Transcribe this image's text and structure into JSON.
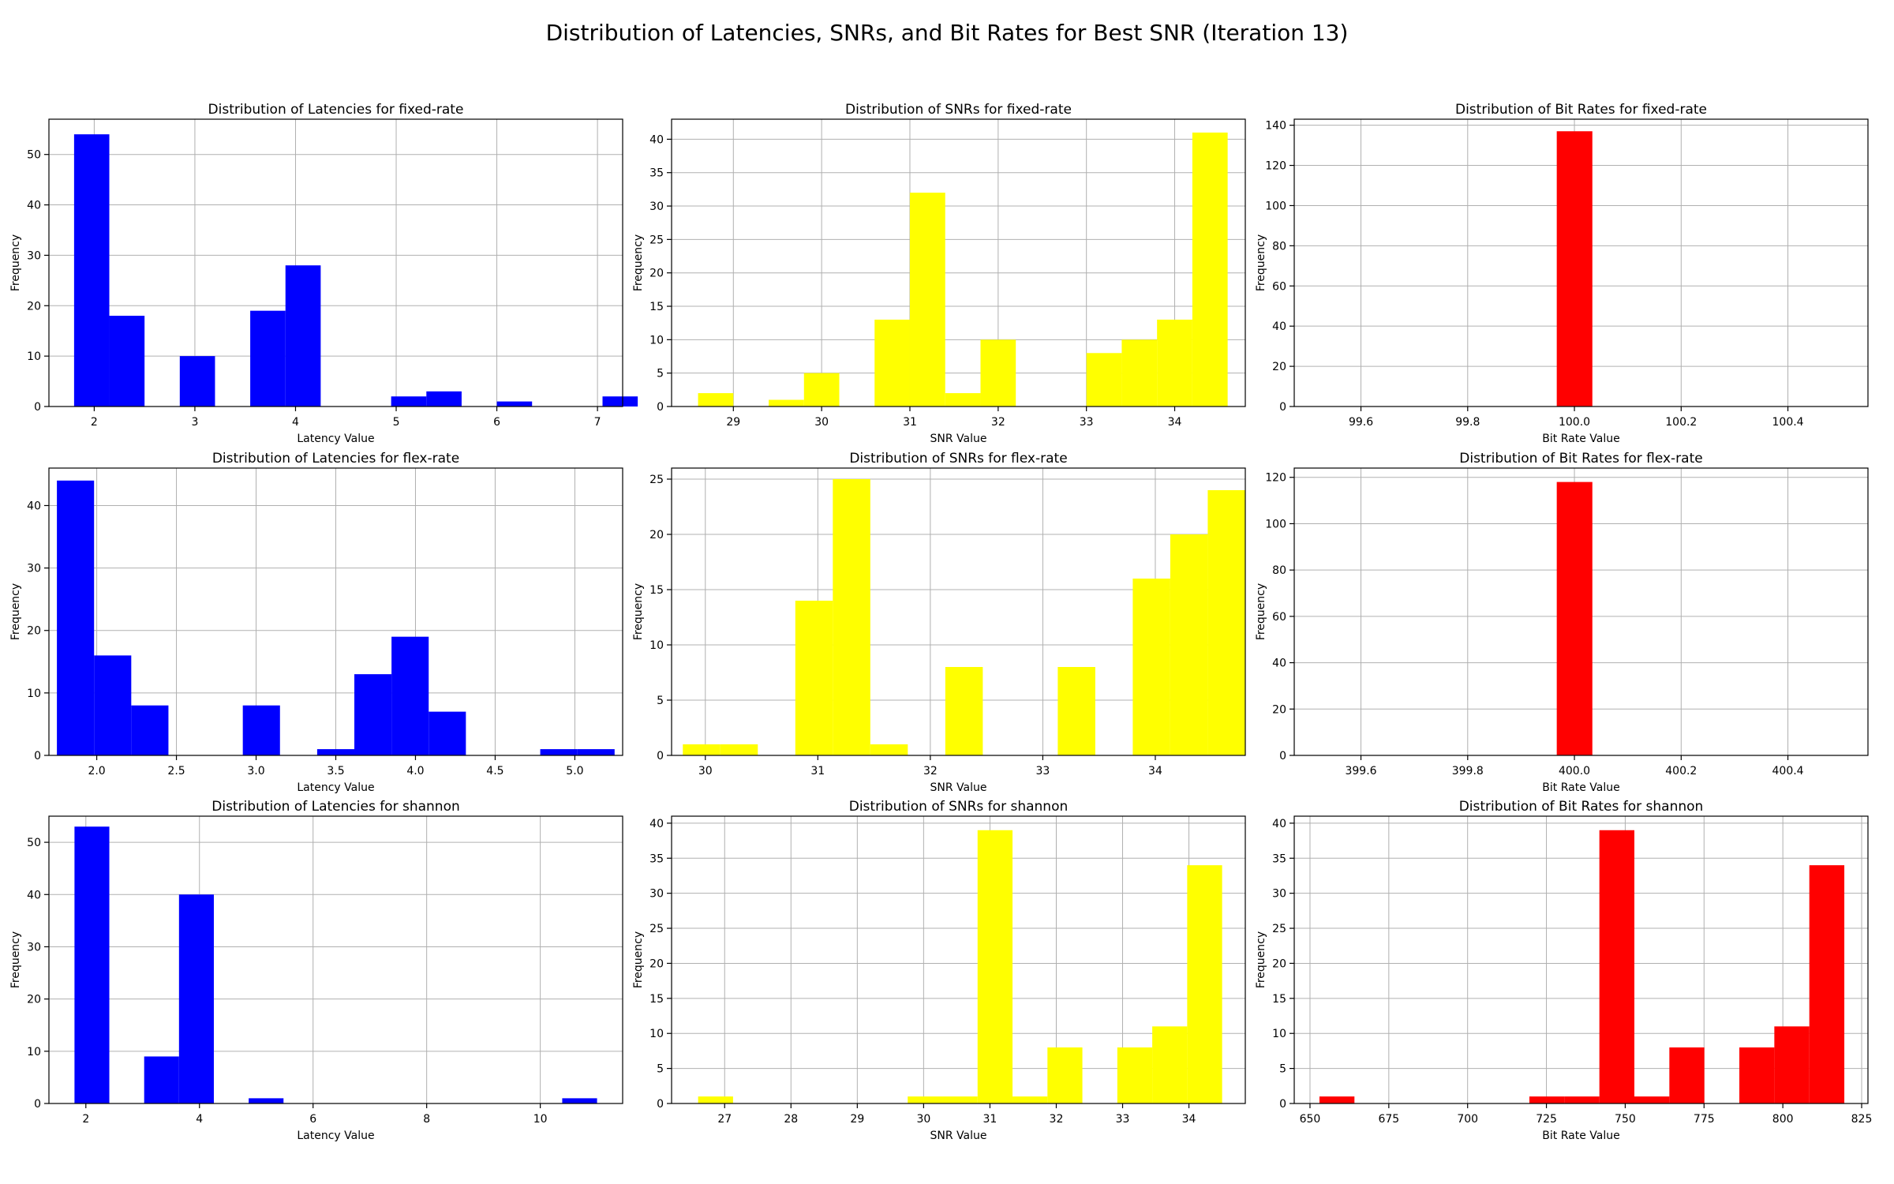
{
  "figure_title": "Distribution of Latencies, SNRs, and Bit Rates for Best SNR (Iteration 13)",
  "chart_data": [
    {
      "type": "bar",
      "title": "Distribution of Latencies for fixed-rate",
      "xlabel": "Latency Value",
      "ylabel": "Frequency",
      "color": "#0000ff",
      "xlim": [
        1.55,
        7.25
      ],
      "ylim": [
        0,
        57
      ],
      "xticks": [
        2,
        3,
        4,
        5,
        6,
        7
      ],
      "xtick_labels": [
        "2",
        "3",
        "4",
        "5",
        "6",
        "7"
      ],
      "yticks": [
        0,
        10,
        20,
        30,
        40,
        50
      ],
      "ytick_labels": [
        "0",
        "10",
        "20",
        "30",
        "40",
        "50"
      ],
      "bin_start": 1.8,
      "bin_width": 0.35,
      "values": [
        54,
        18,
        0,
        10,
        0,
        19,
        28,
        0,
        0,
        2,
        3,
        0,
        1,
        0,
        0,
        2
      ]
    },
    {
      "type": "bar",
      "title": "Distribution of SNRs for fixed-rate",
      "xlabel": "SNR Value",
      "ylabel": "Frequency",
      "color": "#ffff00",
      "xlim": [
        28.3,
        34.8
      ],
      "ylim": [
        0,
        43
      ],
      "xticks": [
        29,
        30,
        31,
        32,
        33,
        34
      ],
      "xtick_labels": [
        "29",
        "30",
        "31",
        "32",
        "33",
        "34"
      ],
      "yticks": [
        0,
        5,
        10,
        15,
        20,
        25,
        30,
        35,
        40
      ],
      "ytick_labels": [
        "0",
        "5",
        "10",
        "15",
        "20",
        "25",
        "30",
        "35",
        "40"
      ],
      "bin_start": 28.6,
      "bin_width": 0.4,
      "values": [
        2,
        0,
        1,
        5,
        0,
        13,
        32,
        2,
        10,
        0,
        0,
        8,
        10,
        13,
        41
      ]
    },
    {
      "type": "bar",
      "title": "Distribution of Bit Rates for fixed-rate",
      "xlabel": "Bit Rate Value",
      "ylabel": "Frequency",
      "color": "#ff0000",
      "xlim": [
        99.475,
        100.55
      ],
      "ylim": [
        0,
        143
      ],
      "xticks": [
        99.6,
        99.8,
        100.0,
        100.2,
        100.4
      ],
      "xtick_labels": [
        "99.6",
        "99.8",
        "100.0",
        "100.2",
        "100.4"
      ],
      "yticks": [
        0,
        20,
        40,
        60,
        80,
        100,
        120,
        140
      ],
      "ytick_labels": [
        "0",
        "20",
        "40",
        "60",
        "80",
        "100",
        "120",
        "140"
      ],
      "bin_start": 99.5,
      "bin_width": 0.0667,
      "values": [
        0,
        0,
        0,
        0,
        0,
        0,
        0,
        137,
        0,
        0,
        0,
        0,
        0,
        0,
        0
      ]
    },
    {
      "type": "bar",
      "title": "Distribution of Latencies for flex-rate",
      "xlabel": "Latency Value",
      "ylabel": "Frequency",
      "color": "#0000ff",
      "xlim": [
        1.7,
        5.3
      ],
      "ylim": [
        0,
        46
      ],
      "xticks": [
        2.0,
        2.5,
        3.0,
        3.5,
        4.0,
        4.5,
        5.0
      ],
      "xtick_labels": [
        "2.0",
        "2.5",
        "3.0",
        "3.5",
        "4.0",
        "4.5",
        "5.0"
      ],
      "yticks": [
        0,
        10,
        20,
        30,
        40
      ],
      "ytick_labels": [
        "0",
        "10",
        "20",
        "30",
        "40"
      ],
      "bin_start": 1.75,
      "bin_width": 0.2333,
      "values": [
        44,
        16,
        8,
        0,
        0,
        8,
        0,
        1,
        13,
        19,
        7,
        0,
        0,
        1,
        1
      ]
    },
    {
      "type": "bar",
      "title": "Distribution of SNRs for flex-rate",
      "xlabel": "SNR Value",
      "ylabel": "Frequency",
      "color": "#ffff00",
      "xlim": [
        29.7,
        34.8
      ],
      "ylim": [
        0,
        26
      ],
      "xticks": [
        30,
        31,
        32,
        33,
        34
      ],
      "xtick_labels": [
        "30",
        "31",
        "32",
        "33",
        "34"
      ],
      "yticks": [
        0,
        5,
        10,
        15,
        20,
        25
      ],
      "ytick_labels": [
        "0",
        "5",
        "10",
        "15",
        "20",
        "25"
      ],
      "bin_start": 29.8,
      "bin_width": 0.3333,
      "values": [
        1,
        1,
        0,
        14,
        25,
        1,
        0,
        8,
        0,
        0,
        8,
        0,
        16,
        20,
        24
      ]
    },
    {
      "type": "bar",
      "title": "Distribution of Bit Rates for flex-rate",
      "xlabel": "Bit Rate Value",
      "ylabel": "Frequency",
      "color": "#ff0000",
      "xlim": [
        399.475,
        400.55
      ],
      "ylim": [
        0,
        124
      ],
      "xticks": [
        399.6,
        399.8,
        400.0,
        400.2,
        400.4
      ],
      "xtick_labels": [
        "399.6",
        "399.8",
        "400.0",
        "400.2",
        "400.4"
      ],
      "yticks": [
        0,
        20,
        40,
        60,
        80,
        100,
        120
      ],
      "ytick_labels": [
        "0",
        "20",
        "40",
        "60",
        "80",
        "100",
        "120"
      ],
      "bin_start": 399.5,
      "bin_width": 0.0667,
      "values": [
        0,
        0,
        0,
        0,
        0,
        0,
        0,
        118,
        0,
        0,
        0,
        0,
        0,
        0,
        0
      ]
    },
    {
      "type": "bar",
      "title": "Distribution of Latencies for shannon",
      "xlabel": "Latency Value",
      "ylabel": "Frequency",
      "color": "#0000ff",
      "xlim": [
        1.35,
        11.45
      ],
      "ylim": [
        0,
        55
      ],
      "xticks": [
        2,
        4,
        6,
        8,
        10
      ],
      "xtick_labels": [
        "2",
        "4",
        "6",
        "8",
        "10"
      ],
      "yticks": [
        0,
        10,
        20,
        30,
        40,
        50
      ],
      "ytick_labels": [
        "0",
        "10",
        "20",
        "30",
        "40",
        "50"
      ],
      "bin_start": 1.8,
      "bin_width": 0.6133,
      "values": [
        53,
        0,
        9,
        40,
        0,
        1,
        0,
        0,
        0,
        0,
        0,
        0,
        0,
        0,
        1
      ]
    },
    {
      "type": "bar",
      "title": "Distribution of SNRs for shannon",
      "xlabel": "SNR Value",
      "ylabel": "Frequency",
      "color": "#ffff00",
      "xlim": [
        26.2,
        34.85
      ],
      "ylim": [
        0,
        41
      ],
      "xticks": [
        27,
        28,
        29,
        30,
        31,
        32,
        33,
        34
      ],
      "xtick_labels": [
        "27",
        "28",
        "29",
        "30",
        "31",
        "32",
        "33",
        "34"
      ],
      "yticks": [
        0,
        5,
        10,
        15,
        20,
        25,
        30,
        35,
        40
      ],
      "ytick_labels": [
        "0",
        "5",
        "10",
        "15",
        "20",
        "25",
        "30",
        "35",
        "40"
      ],
      "bin_start": 26.6,
      "bin_width": 0.5267,
      "values": [
        1,
        0,
        0,
        0,
        0,
        0,
        1,
        1,
        39,
        1,
        8,
        0,
        8,
        11,
        34
      ]
    },
    {
      "type": "bar",
      "title": "Distribution of Bit Rates for shannon",
      "xlabel": "Bit Rate Value",
      "ylabel": "Frequency",
      "color": "#ff0000",
      "xlim": [
        645,
        827
      ],
      "ylim": [
        0,
        41
      ],
      "xticks": [
        650,
        675,
        700,
        725,
        750,
        775,
        800,
        825
      ],
      "xtick_labels": [
        "650",
        "675",
        "700",
        "725",
        "750",
        "775",
        "800",
        "825"
      ],
      "yticks": [
        0,
        5,
        10,
        15,
        20,
        25,
        30,
        35,
        40
      ],
      "ytick_labels": [
        "0",
        "5",
        "10",
        "15",
        "20",
        "25",
        "30",
        "35",
        "40"
      ],
      "bin_start": 653,
      "bin_width": 11.1,
      "values": [
        1,
        0,
        0,
        0,
        0,
        0,
        1,
        1,
        39,
        1,
        8,
        0,
        8,
        11,
        34
      ]
    }
  ]
}
